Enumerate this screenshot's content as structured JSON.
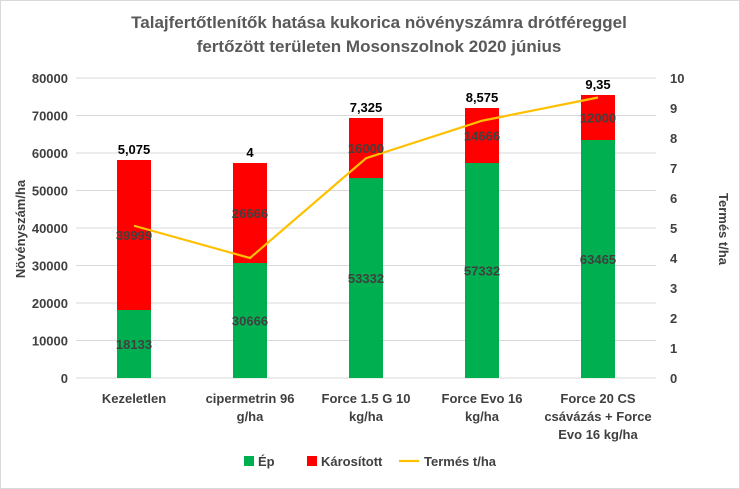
{
  "chart_data": {
    "type": "bar",
    "title_lines": [
      "Talajfertőtlenítők hatása kukorica növényszámra drótféreggel",
      "fertőzött területen Mosonszolnok 2020 június"
    ],
    "categories": [
      [
        "Kezeletlen"
      ],
      [
        "cipermetrin 96",
        "g/ha"
      ],
      [
        "Force 1.5 G 10",
        "kg/ha"
      ],
      [
        "Force Evo 16",
        "kg/ha"
      ],
      [
        "Force 20 CS",
        "csávázás + Force",
        "Evo 16 kg/ha"
      ]
    ],
    "ylabel": "Növényszám/ha",
    "y2label": "Termés t/ha",
    "ylim": [
      0,
      80000
    ],
    "y2lim": [
      0,
      10
    ],
    "yticks": [
      "0",
      "10000",
      "20000",
      "30000",
      "40000",
      "50000",
      "60000",
      "70000",
      "80000"
    ],
    "y2ticks": [
      "0",
      "1",
      "2",
      "3",
      "4",
      "5",
      "6",
      "7",
      "8",
      "9",
      "10"
    ],
    "stacked": true,
    "series": [
      {
        "name": "Ép",
        "kind": "bar",
        "color": "#00b050",
        "values": [
          18133,
          30666,
          53332,
          57332,
          63465
        ],
        "labels": [
          "18133",
          "30666",
          "53332",
          "57332",
          "63465"
        ]
      },
      {
        "name": "Károsított",
        "kind": "bar",
        "color": "#ff0000",
        "values": [
          39999,
          26666,
          16000,
          14666,
          12000
        ],
        "labels": [
          "39999",
          "26666",
          "16000",
          "14666",
          "12000"
        ]
      },
      {
        "name": "Termés t/ha",
        "kind": "line",
        "axis": "secondary",
        "color": "#ffc000",
        "values": [
          5.075,
          4,
          7.325,
          8.575,
          9.35
        ],
        "labels": [
          "5,075",
          "4",
          "7,325",
          "8,575",
          "9,35"
        ]
      }
    ],
    "grid": "horizontal",
    "legend": "bottom"
  }
}
